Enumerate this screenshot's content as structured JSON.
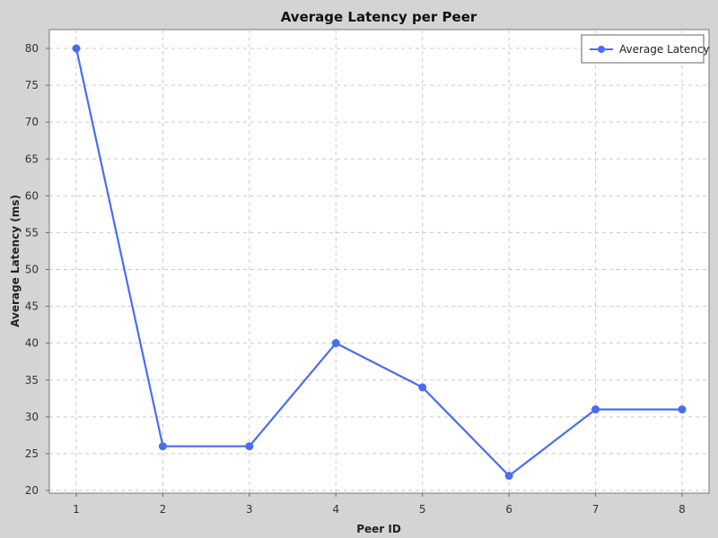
{
  "chart_data": {
    "type": "line",
    "title": "Average Latency per Peer",
    "xlabel": "Peer ID",
    "ylabel": "Average Latency (ms)",
    "x": [
      1,
      2,
      3,
      4,
      5,
      6,
      7,
      8
    ],
    "xticks": [
      "1",
      "2",
      "3",
      "4",
      "5",
      "6",
      "7",
      "8"
    ],
    "ylim": [
      20,
      80
    ],
    "yticks": [
      20,
      25,
      30,
      35,
      40,
      45,
      50,
      55,
      60,
      65,
      70,
      75,
      80
    ],
    "grid": true,
    "legend_position": "top-right",
    "series": [
      {
        "name": "Average Latency",
        "values": [
          80,
          26,
          26,
          40,
          34,
          22,
          31,
          31
        ],
        "color": "#4a6cf2"
      }
    ]
  }
}
